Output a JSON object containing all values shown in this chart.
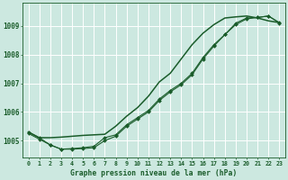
{
  "title": "Graphe pression niveau de la mer (hPa)",
  "background_color": "#cce8e0",
  "line_color": "#1a5c2a",
  "x_ticks": [
    0,
    1,
    2,
    3,
    4,
    5,
    6,
    7,
    8,
    9,
    10,
    11,
    12,
    13,
    14,
    15,
    16,
    17,
    18,
    19,
    20,
    21,
    22,
    23
  ],
  "y_lim": [
    1004.4,
    1009.8
  ],
  "y_ticks": [
    1005,
    1006,
    1007,
    1008,
    1009
  ],
  "series_markers1": [
    1005.3,
    1005.1,
    1004.85,
    1004.7,
    1004.7,
    1004.72,
    1004.75,
    1005.0,
    1005.15,
    1005.5,
    1005.75,
    1006.0,
    1006.4,
    1006.7,
    1006.95,
    1007.3,
    1007.85,
    1008.3,
    1008.7,
    1009.05,
    1009.25,
    1009.3,
    1009.35,
    1009.1
  ],
  "series_markers2": [
    1005.25,
    1005.05,
    1004.85,
    1004.7,
    1004.72,
    1004.75,
    1004.8,
    1005.1,
    1005.2,
    1005.55,
    1005.8,
    1006.05,
    1006.45,
    1006.75,
    1007.0,
    1007.35,
    1007.9,
    1008.35,
    1008.7,
    1009.1,
    1009.28,
    1009.3,
    1009.35,
    1009.12
  ],
  "series_smooth": [
    1005.3,
    1005.1,
    1005.1,
    1005.12,
    1005.15,
    1005.18,
    1005.2,
    1005.22,
    1005.5,
    1005.85,
    1006.15,
    1006.55,
    1007.05,
    1007.35,
    1007.85,
    1008.35,
    1008.75,
    1009.05,
    1009.28,
    1009.32,
    1009.35,
    1009.28,
    1009.18,
    1009.12
  ]
}
